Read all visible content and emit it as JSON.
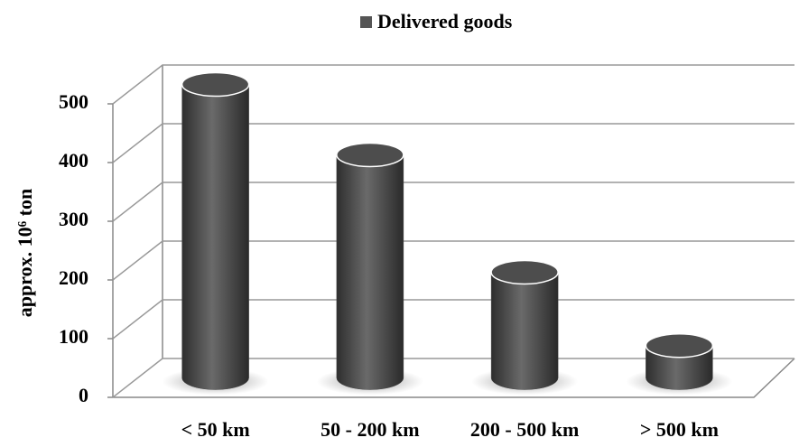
{
  "chart_data": {
    "type": "bar3d",
    "legend_title": "Delivered goods",
    "y_label": "approx. 10⁶ ton",
    "categories": [
      "< 50 km",
      "50 - 200 km",
      "200 - 500 km",
      "> 500 km"
    ],
    "series": [
      {
        "name": "Delivered goods",
        "color": "#4d4d4d",
        "values": [
          500,
          380,
          180,
          55
        ]
      }
    ],
    "ylim": [
      0,
      500
    ],
    "yticks": [
      0,
      100,
      200,
      300,
      400,
      500
    ],
    "grid": true,
    "legend": "top"
  }
}
